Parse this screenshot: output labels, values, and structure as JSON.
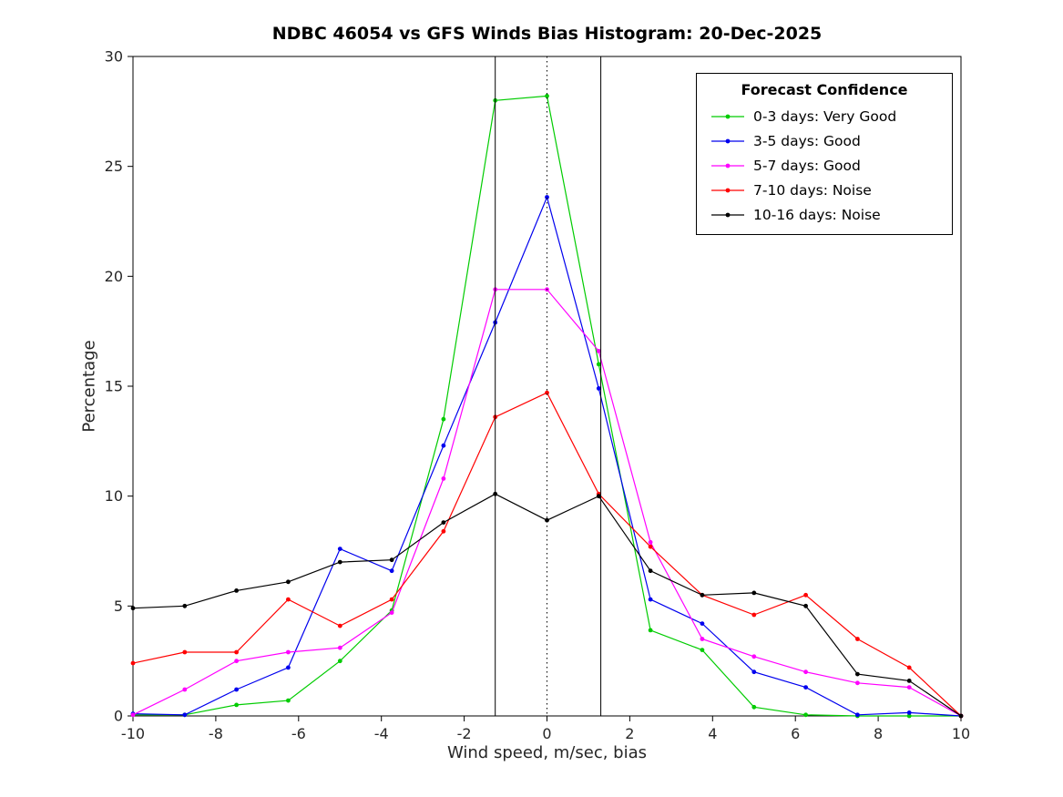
{
  "title": "NDBC 46054 vs GFS Winds Bias Histogram: 20-Dec-2025",
  "chart_data": {
    "type": "line",
    "title": "NDBC 46054 vs GFS Winds Bias Histogram: 20-Dec-2025",
    "xlabel": "Wind speed, m/sec, bias",
    "ylabel": "Percentage",
    "xlim": [
      -10,
      10
    ],
    "ylim": [
      0,
      30
    ],
    "xticks": [
      -10,
      -8,
      -6,
      -4,
      -2,
      0,
      2,
      4,
      6,
      8,
      10
    ],
    "yticks": [
      0,
      5,
      10,
      15,
      20,
      25,
      30
    ],
    "grid": false,
    "x": [
      -10,
      -8.75,
      -7.5,
      -6.25,
      -5,
      -3.75,
      -2.5,
      -1.25,
      0,
      1.25,
      2.5,
      3.75,
      5,
      6.25,
      7.5,
      8.75,
      10
    ],
    "series": [
      {
        "name": "0-3 days: Very Good",
        "color": "#00cc00",
        "values": [
          0.05,
          0.05,
          0.5,
          0.7,
          2.5,
          4.8,
          13.5,
          28.0,
          28.2,
          16.0,
          3.9,
          3.0,
          0.4,
          0.05,
          0.0,
          0.0,
          0.0
        ]
      },
      {
        "name": "3-5 days: Good",
        "color": "#0000ee",
        "values": [
          0.1,
          0.05,
          1.2,
          2.2,
          7.6,
          6.6,
          12.3,
          17.9,
          23.6,
          14.9,
          5.3,
          4.2,
          2.0,
          1.3,
          0.05,
          0.15,
          0.0
        ]
      },
      {
        "name": "5-7 days: Good",
        "color": "#ff00ff",
        "values": [
          0.05,
          1.2,
          2.5,
          2.9,
          3.1,
          4.7,
          10.8,
          19.4,
          19.4,
          16.6,
          7.9,
          3.5,
          2.7,
          2.0,
          1.5,
          1.3,
          0.0
        ]
      },
      {
        "name": "7-10 days: Noise",
        "color": "#ff0000",
        "values": [
          2.4,
          2.9,
          2.9,
          5.3,
          4.1,
          5.3,
          8.4,
          13.6,
          14.7,
          10.1,
          7.7,
          5.5,
          4.6,
          5.5,
          3.5,
          2.2,
          0.0
        ]
      },
      {
        "name": "10-16 days: Noise",
        "color": "#000000",
        "values": [
          4.9,
          5.0,
          5.7,
          6.1,
          7.0,
          7.1,
          8.8,
          10.1,
          8.9,
          10.0,
          6.6,
          5.5,
          5.6,
          5.0,
          1.9,
          1.6,
          0.0
        ]
      }
    ],
    "ref_lines": [
      {
        "x": -1.25,
        "style": "solid"
      },
      {
        "x": 0,
        "style": "dotted"
      },
      {
        "x": 1.3,
        "style": "solid"
      }
    ],
    "legend": {
      "title": "Forecast Confidence",
      "position": "top-right"
    }
  }
}
